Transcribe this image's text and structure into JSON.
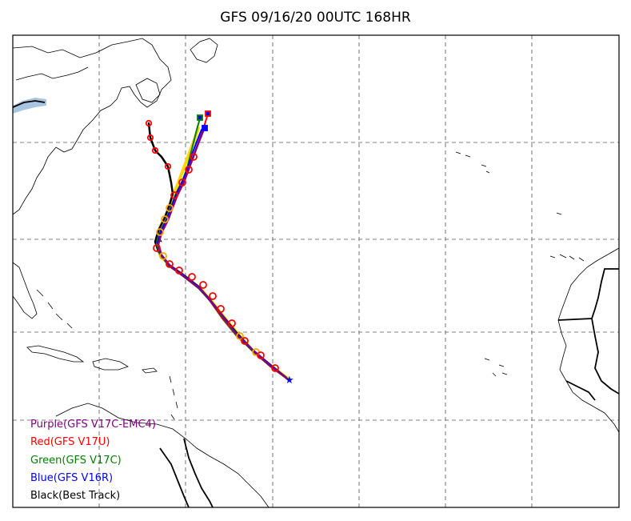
{
  "title": "GFS 09/16/20 00UTC 168HR",
  "legend": [
    {
      "label": "Purple(GFS V17C-EMC4)",
      "color": "#800080"
    },
    {
      "label": "Red(GFS V17U)",
      "color": "#ff0000"
    },
    {
      "label": "Green(GFS V17C)",
      "color": "#008000"
    },
    {
      "label": "Blue(GFS V16R)",
      "color": "#0000ff"
    },
    {
      "label": "Black(Best Track)",
      "color": "#000000"
    }
  ],
  "colors": {
    "frame": "#000000",
    "grid": "#808080",
    "coastline": "#000000",
    "lake": "#a8c4e0",
    "yellow_track": "#ffd700",
    "orange_markers": "#ffa500"
  },
  "map": {
    "grid_style": "dashed",
    "track_start_marker": "star-icon",
    "track_point_marker": "circle-icon"
  }
}
